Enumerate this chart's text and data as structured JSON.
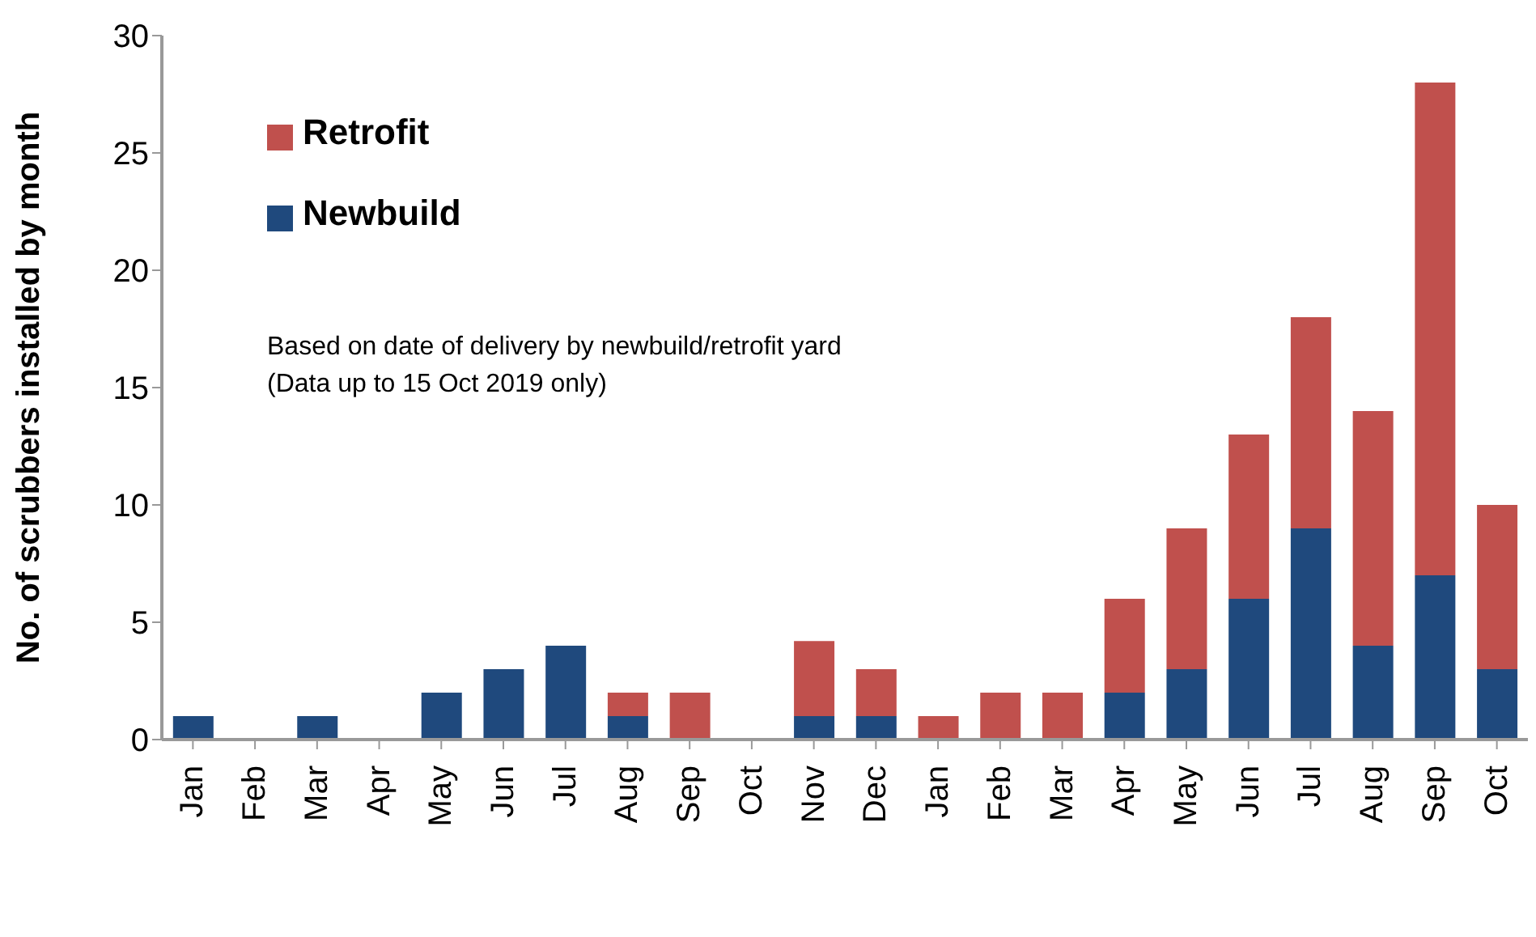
{
  "chart_data": {
    "type": "bar",
    "stacked": true,
    "ylabel": "No. of scrubbers installed by month",
    "categories": [
      "Jan",
      "Feb",
      "Mar",
      "Apr",
      "May",
      "Jun",
      "Jul",
      "Aug",
      "Sep",
      "Oct",
      "Nov",
      "Dec",
      "Jan",
      "Feb",
      "Mar",
      "Apr",
      "May",
      "Jun",
      "Jul",
      "Aug",
      "Sep",
      "Oct"
    ],
    "series": [
      {
        "name": "Newbuild",
        "color": "#1f497d",
        "values": [
          1,
          0,
          1,
          0,
          2,
          3,
          4,
          1,
          0,
          0,
          1,
          1,
          0,
          0,
          0,
          2,
          3,
          6,
          9,
          4,
          7,
          3
        ]
      },
      {
        "name": "Retrofit",
        "color": "#c0504d",
        "values": [
          0,
          0,
          0,
          0,
          0,
          0,
          0,
          1,
          2,
          0,
          3.2,
          2,
          1,
          2,
          2,
          4,
          6,
          7,
          9,
          10,
          21,
          7
        ]
      }
    ],
    "ylim": [
      0,
      30
    ],
    "yticks": [
      0,
      5,
      10,
      15,
      20,
      25,
      30
    ],
    "grid": false,
    "legend": "top left",
    "annotations": [
      "Based on date of delivery by newbuild/retrofit yard",
      "(Data up to 15 Oct 2019 only)"
    ]
  }
}
